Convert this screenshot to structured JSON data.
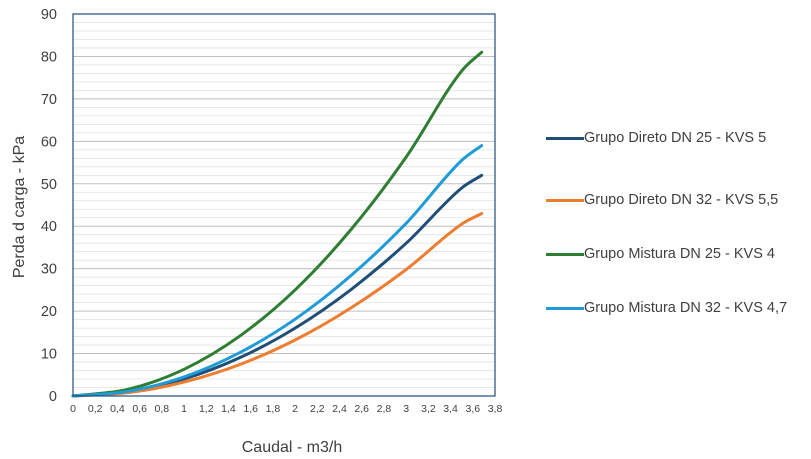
{
  "chart_data": {
    "type": "line",
    "title": "",
    "xlabel": "Caudal - m3/h",
    "ylabel": "Perda d carga - kPa",
    "xlim": [
      0,
      3.8
    ],
    "ylim": [
      0,
      90
    ],
    "x_ticks": [
      "0",
      "0,2",
      "0,4",
      "0,6",
      "0,8",
      "1",
      "1,2",
      "1,4",
      "1,6",
      "1,8",
      "2",
      "2,2",
      "2,4",
      "2,6",
      "2,8",
      "3",
      "3,2",
      "3,4",
      "3,6",
      "3,8"
    ],
    "y_ticks": [
      "0",
      "10",
      "20",
      "30",
      "40",
      "50",
      "60",
      "70",
      "80",
      "90"
    ],
    "grid": true,
    "legend_position": "right",
    "x": [
      0,
      0.5,
      1.0,
      1.5,
      2.0,
      2.5,
      3.0,
      3.5,
      3.68
    ],
    "series": [
      {
        "name": "Grupo Direto DN 25 - KVS 5",
        "color": "#1f4e79",
        "values": [
          0,
          1.0,
          4.0,
          9.0,
          16.0,
          25.0,
          36.0,
          49.0,
          52.0
        ]
      },
      {
        "name": "Grupo Direto DN 32 - KVS 5,5",
        "color": "#ed7d31",
        "values": [
          0,
          0.8,
          3.3,
          7.4,
          13.2,
          20.7,
          29.8,
          40.5,
          43.0
        ]
      },
      {
        "name": "Grupo Mistura DN 25 - KVS 4",
        "color": "#2e7d32",
        "values": [
          0,
          1.6,
          6.3,
          14.1,
          25.0,
          39.1,
          56.3,
          76.6,
          81.0
        ]
      },
      {
        "name": "Grupo Mistura DN 32 - KVS 4,7",
        "color": "#1f9bd7",
        "values": [
          0,
          1.1,
          4.5,
          10.2,
          18.1,
          28.3,
          40.7,
          55.5,
          59.0
        ]
      }
    ]
  }
}
